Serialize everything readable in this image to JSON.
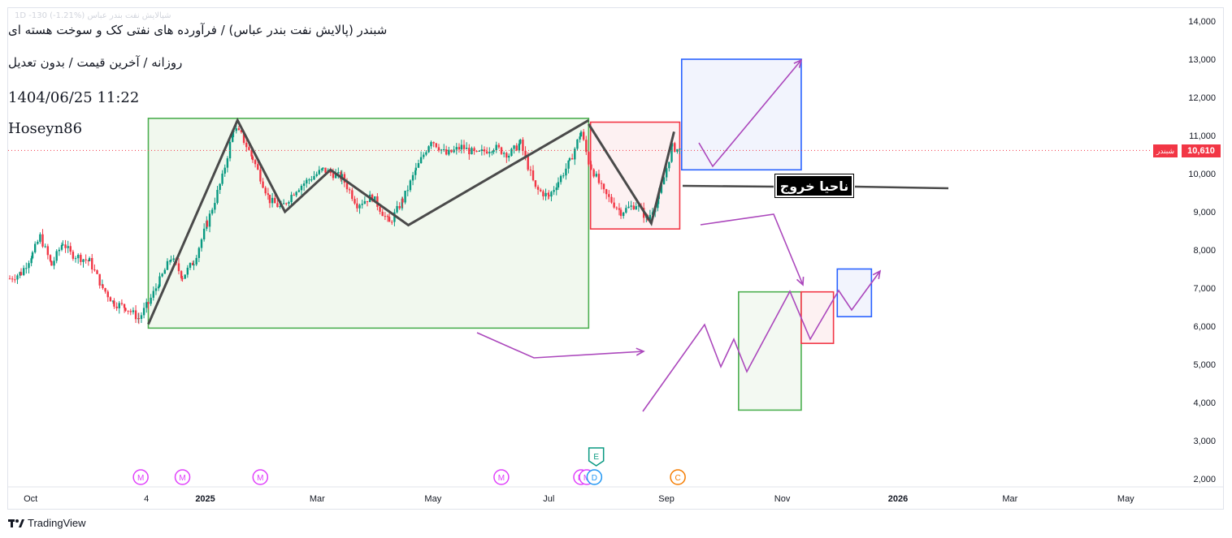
{
  "header": {
    "ghost": "شپالایش نفت بندر عباس 1D  -130 (-1.21%)",
    "title": "شبندر (پالایش نفت بندر عباس) / فرآورده های نفتی کک و سوخت هسته ای",
    "subtitle": "روزانه / آخرین قیمت / بدون تعدیل",
    "datetime": "1404/06/25 11:22",
    "author": "Hoseyn86"
  },
  "brand": {
    "name": "TradingView",
    "icon": "tradingview-logo-icon"
  },
  "price": {
    "symbol_short": "شبندر",
    "last": "10,610",
    "color": "#f23645"
  },
  "annotation": {
    "exit_zone_label": "ناحیا خروج"
  },
  "chart_data": {
    "type": "candlestick",
    "y_axis": {
      "min": 2000,
      "max": 14000,
      "ticks": [
        "2,000",
        "3,000",
        "4,000",
        "5,000",
        "6,000",
        "7,000",
        "8,000",
        "9,000",
        "10,000",
        "11,000",
        "12,000",
        "13,000",
        "14,000"
      ],
      "side": "right"
    },
    "x_axis": {
      "tick_labels": [
        "Oct",
        "4",
        "2025",
        "Mar",
        "May",
        "Jul",
        "Sep",
        "Nov",
        "2026",
        "Mar",
        "May"
      ],
      "bold": [
        "2025",
        "2026"
      ]
    },
    "last_price": 10610,
    "colors": {
      "up": "#089981",
      "down": "#f23645"
    },
    "candle_path": [
      [
        "2024-09-20",
        7250
      ],
      [
        "2024-09-26",
        7400
      ],
      [
        "2024-10-02",
        7900
      ],
      [
        "2024-10-06",
        8350
      ],
      [
        "2024-10-12",
        7600
      ],
      [
        "2024-10-18",
        8200
      ],
      [
        "2024-10-22",
        7900
      ],
      [
        "2024-11-01",
        7700
      ],
      [
        "2024-11-08",
        7000
      ],
      [
        "2024-11-14",
        6600
      ],
      [
        "2024-11-20",
        6500
      ],
      [
        "2024-11-27",
        6200
      ],
      [
        "2024-12-02",
        6600
      ],
      [
        "2024-12-08",
        7200
      ],
      [
        "2024-12-14",
        7800
      ],
      [
        "2024-12-20",
        7300
      ],
      [
        "2024-12-26",
        7700
      ],
      [
        "2025-01-02",
        8700
      ],
      [
        "2025-01-10",
        9900
      ],
      [
        "2025-01-16",
        11200
      ],
      [
        "2025-01-20",
        11000
      ],
      [
        "2025-01-26",
        10400
      ],
      [
        "2025-02-04",
        9300
      ],
      [
        "2025-02-10",
        9100
      ],
      [
        "2025-02-18",
        9600
      ],
      [
        "2025-02-26",
        9900
      ],
      [
        "2025-03-04",
        10100
      ],
      [
        "2025-03-14",
        9900
      ],
      [
        "2025-03-22",
        9200
      ],
      [
        "2025-03-30",
        9400
      ],
      [
        "2025-04-08",
        8700
      ],
      [
        "2025-04-15",
        9300
      ],
      [
        "2025-04-22",
        10100
      ],
      [
        "2025-04-30",
        10900
      ],
      [
        "2025-05-08",
        10500
      ],
      [
        "2025-05-16",
        10700
      ],
      [
        "2025-05-24",
        10500
      ],
      [
        "2025-06-02",
        10700
      ],
      [
        "2025-06-10",
        10500
      ],
      [
        "2025-06-16",
        10800
      ],
      [
        "2025-06-24",
        9600
      ],
      [
        "2025-07-01",
        9400
      ],
      [
        "2025-07-06",
        9800
      ],
      [
        "2025-07-12",
        10300
      ],
      [
        "2025-07-18",
        11100
      ],
      [
        "2025-07-22",
        10300
      ],
      [
        "2025-07-30",
        9500
      ],
      [
        "2025-08-08",
        9000
      ],
      [
        "2025-08-16",
        9200
      ],
      [
        "2025-08-22",
        8800
      ],
      [
        "2025-08-28",
        9400
      ],
      [
        "2025-09-04",
        10700
      ],
      [
        "2025-09-08",
        10610
      ]
    ],
    "zigzag": [
      [
        "2024-12-02",
        6050
      ],
      [
        "2025-01-18",
        11400
      ],
      [
        "2025-02-12",
        9000
      ],
      [
        "2025-03-08",
        10100
      ],
      [
        "2025-04-18",
        8650
      ],
      [
        "2025-07-22",
        11400
      ]
    ],
    "zigzag_small": [
      [
        "2025-07-22",
        11300
      ],
      [
        "2025-08-24",
        8700
      ],
      [
        "2025-09-05",
        11100
      ]
    ],
    "boxes": [
      {
        "name": "base-range",
        "from": "2024-12-02",
        "to": "2025-07-22",
        "low": 5950,
        "high": 11450,
        "stroke": "#4caf50",
        "fill": "#f1f8ee"
      },
      {
        "name": "correction",
        "from": "2025-07-23",
        "to": "2025-09-08",
        "low": 8550,
        "high": 11350,
        "stroke": "#f23645",
        "fill": "#fdf1f2"
      },
      {
        "name": "target-up",
        "from": "2025-09-09",
        "to": "2025-11-11",
        "low": 10100,
        "high": 13000,
        "stroke": "#2962ff",
        "fill": "#f2f4fd"
      },
      {
        "name": "projection-range",
        "from": "2025-10-09",
        "to": "2025-11-11",
        "low": 3800,
        "high": 6900,
        "stroke": "#4caf50",
        "fill": "#f3f9f2"
      },
      {
        "name": "projection-correction",
        "from": "2025-11-11",
        "to": "2025-11-28",
        "low": 5550,
        "high": 6900,
        "stroke": "#f23645",
        "fill": "#fdf1f2"
      },
      {
        "name": "projection-target",
        "from": "2025-11-30",
        "to": "2025-12-18",
        "low": 6250,
        "high": 7500,
        "stroke": "#2962ff",
        "fill": "#f2f4fd"
      }
    ],
    "events": [
      {
        "date": "2024-11-28",
        "label": "M",
        "color": "#e040fb"
      },
      {
        "date": "2024-12-20",
        "label": "M",
        "color": "#e040fb"
      },
      {
        "date": "2025-01-30",
        "label": "M",
        "color": "#e040fb"
      },
      {
        "date": "2025-06-06",
        "label": "M",
        "color": "#e040fb"
      },
      {
        "date": "2025-07-18",
        "label": "M",
        "color": "#e040fb"
      },
      {
        "date": "2025-07-21",
        "label": "M",
        "color": "#e040fb"
      },
      {
        "date": "2025-07-25",
        "label": "D",
        "color": "#2196f3"
      },
      {
        "date": "2025-07-26",
        "label": "E",
        "color": "#089981"
      },
      {
        "date": "2025-09-07",
        "label": "C",
        "color": "#f57c00"
      }
    ]
  }
}
